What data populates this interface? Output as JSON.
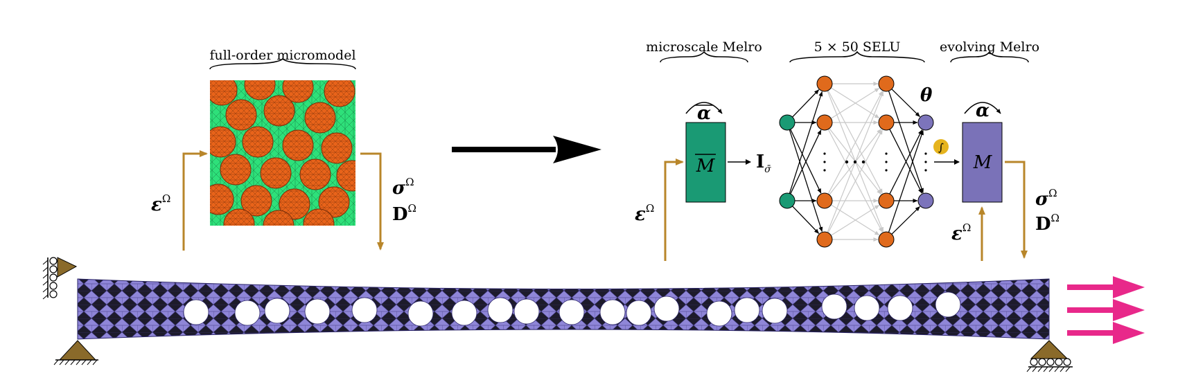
{
  "headers": {
    "micromodel": "full-order micromodel",
    "microscale": "microscale Melro",
    "network": "5 × 50 SELU",
    "evolving": "evolving Melro"
  },
  "symbols": {
    "strain_base": "ε",
    "omega": "Ω",
    "stress_base": "σ",
    "tangent_base": "D",
    "alpha": "α",
    "alpha_bar": "α",
    "theta": "θ",
    "model_bar": "M",
    "model": "M",
    "invariant_base": "I",
    "invariant_sub": "σ̄",
    "activation": "∫"
  },
  "colors": {
    "matrix_green": "#2ee07a",
    "fiber_orange": "#e8631a",
    "melro_green": "#1a9a74",
    "melro_purple": "#7a72b8",
    "node_orange": "#e06a1c",
    "node_green": "#1a9a74",
    "node_purple": "#7c74bb",
    "arrow_gold": "#b8862a",
    "beam_purple": "#8f86d8",
    "load_pink": "#e8288a",
    "support_brown": "#8a6a2a",
    "activation_gold": "#e6b41e"
  }
}
